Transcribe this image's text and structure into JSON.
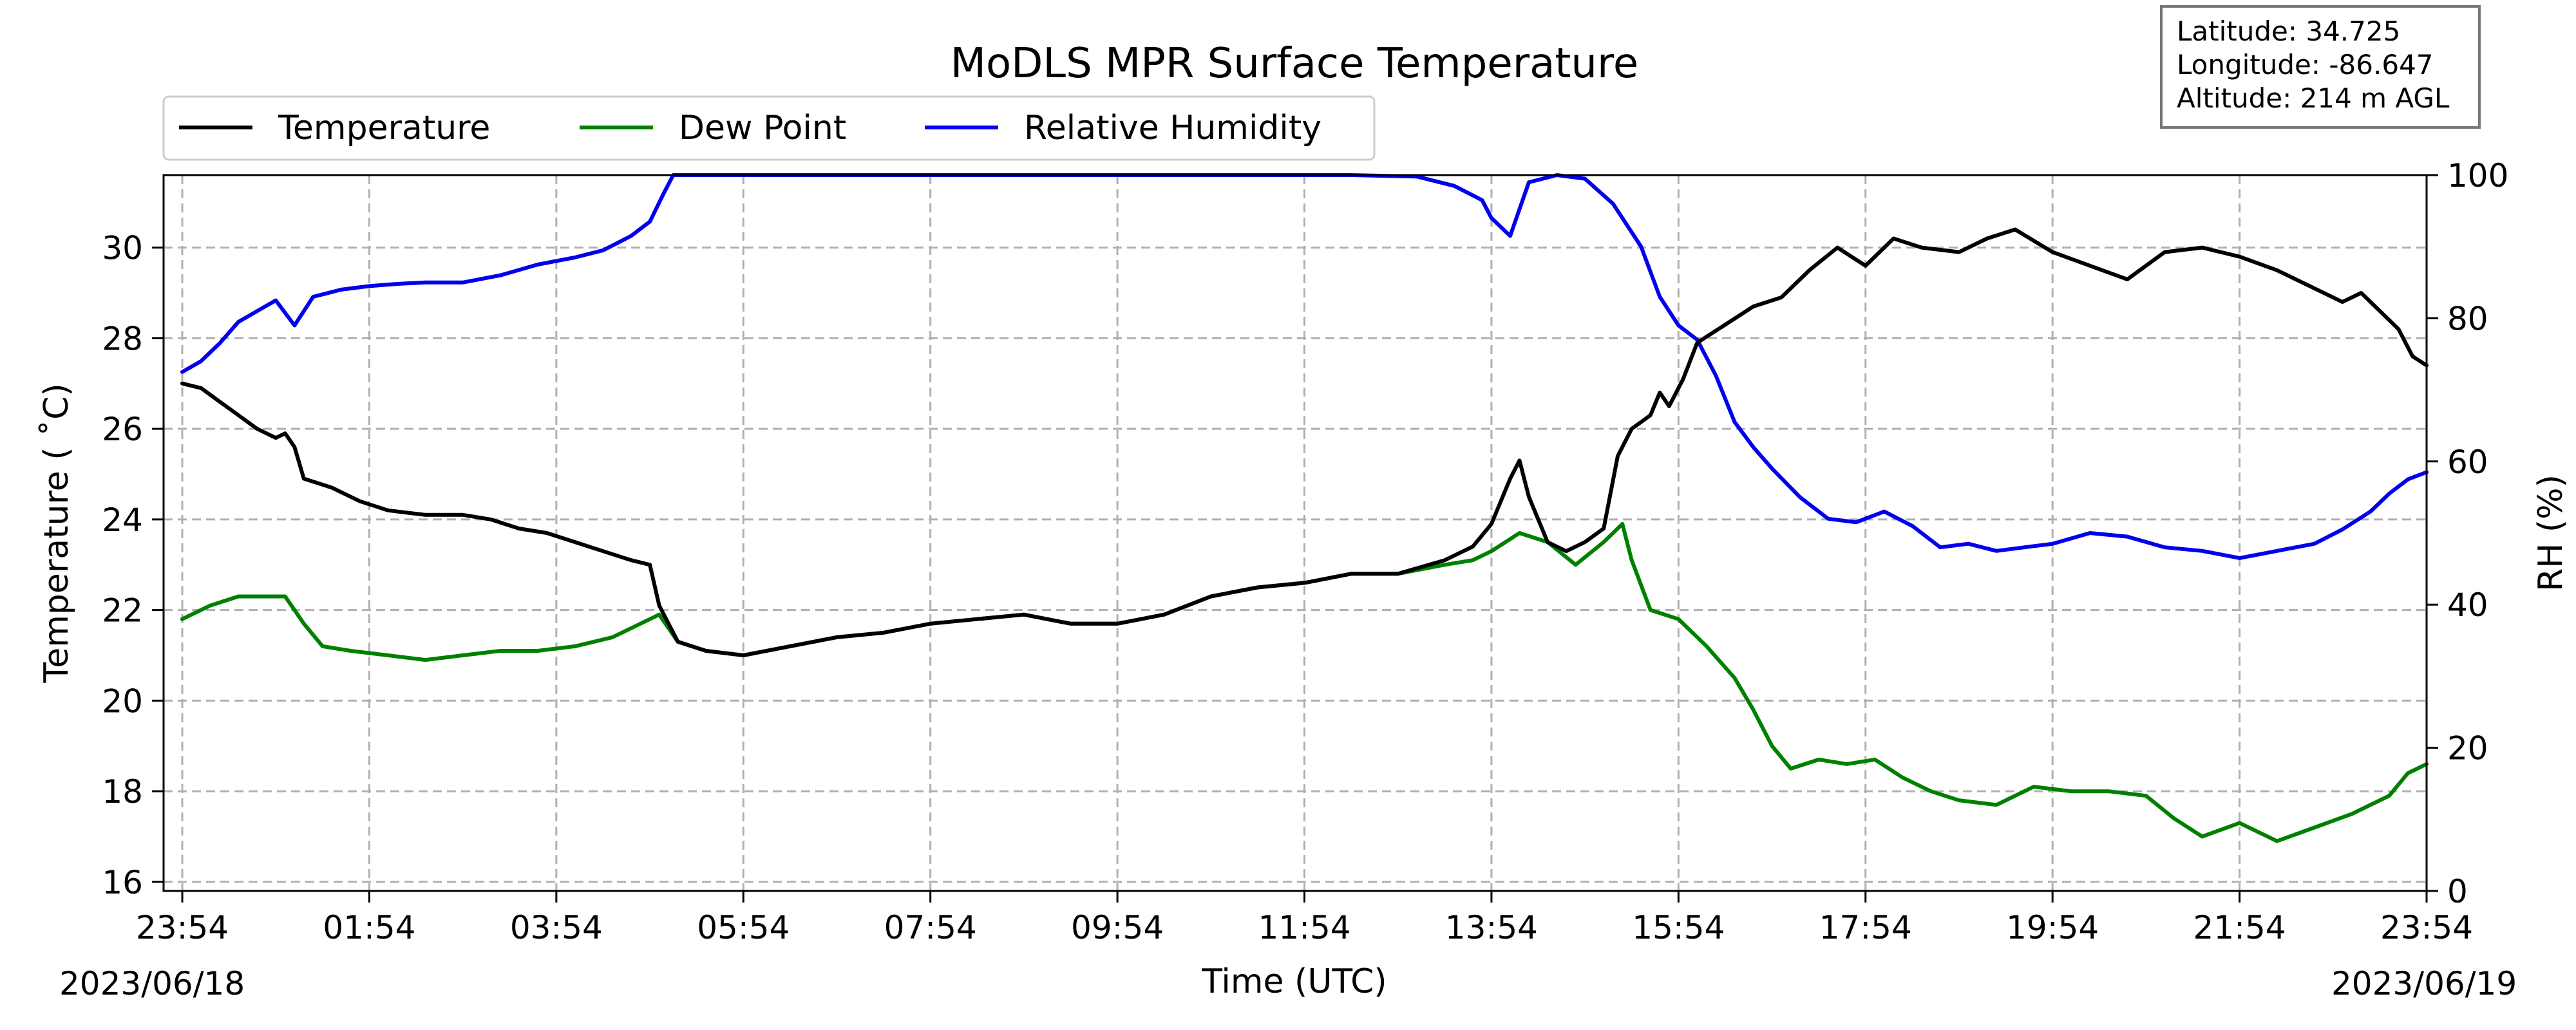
{
  "chart_data": {
    "type": "line",
    "title": "MoDLS MPR Surface Temperature",
    "xlabel": "Time (UTC)",
    "ylabel_left": "Temperature ( $^\\circ$C)",
    "ylabel_left_display": "Temperature ( ˚C)",
    "ylabel_right": "RH (%)",
    "x_ticks": [
      "23:54",
      "01:54",
      "03:54",
      "05:54",
      "07:54",
      "09:54",
      "11:54",
      "13:54",
      "15:54",
      "17:54",
      "19:54",
      "21:54",
      "23:54"
    ],
    "x_tick_hours": [
      0,
      2,
      4,
      6,
      8,
      10,
      12,
      14,
      16,
      18,
      20,
      22,
      24
    ],
    "x_range_hours_since_2354": [
      -0.2,
      24
    ],
    "date_start": "2023/06/18",
    "date_end": "2023/06/19",
    "ylim_left": [
      15.8,
      31.6
    ],
    "yticks_left": [
      16,
      18,
      20,
      22,
      24,
      26,
      28,
      30
    ],
    "ylim_right": [
      0,
      100
    ],
    "yticks_right": [
      0,
      20,
      40,
      60,
      80,
      100
    ],
    "grid": true,
    "legend_placement": "top-left",
    "info_box": {
      "latitude": "Latitude: 34.725",
      "longitude": "Longitude: -86.647",
      "altitude": "Altitude: 214 m AGL"
    },
    "series": [
      {
        "name": "Temperature",
        "axis": "left",
        "color": "#000000",
        "points": [
          [
            0,
            27.0
          ],
          [
            0.2,
            26.9
          ],
          [
            0.4,
            26.6
          ],
          [
            0.6,
            26.3
          ],
          [
            0.8,
            26.0
          ],
          [
            1.0,
            25.8
          ],
          [
            1.1,
            25.9
          ],
          [
            1.2,
            25.6
          ],
          [
            1.3,
            24.9
          ],
          [
            1.6,
            24.7
          ],
          [
            1.9,
            24.4
          ],
          [
            2.2,
            24.2
          ],
          [
            2.6,
            24.1
          ],
          [
            3.0,
            24.1
          ],
          [
            3.3,
            24.0
          ],
          [
            3.6,
            23.8
          ],
          [
            3.9,
            23.7
          ],
          [
            4.2,
            23.5
          ],
          [
            4.5,
            23.3
          ],
          [
            4.8,
            23.1
          ],
          [
            5.0,
            23.0
          ],
          [
            5.1,
            22.1
          ],
          [
            5.3,
            21.3
          ],
          [
            5.6,
            21.1
          ],
          [
            6.0,
            21.0
          ],
          [
            6.5,
            21.2
          ],
          [
            7.0,
            21.4
          ],
          [
            7.5,
            21.5
          ],
          [
            8.0,
            21.7
          ],
          [
            8.5,
            21.8
          ],
          [
            9.0,
            21.9
          ],
          [
            9.5,
            21.7
          ],
          [
            10.0,
            21.7
          ],
          [
            10.5,
            21.9
          ],
          [
            11.0,
            22.3
          ],
          [
            11.5,
            22.5
          ],
          [
            12.0,
            22.6
          ],
          [
            12.5,
            22.8
          ],
          [
            13.0,
            22.8
          ],
          [
            13.5,
            23.1
          ],
          [
            13.8,
            23.4
          ],
          [
            14.0,
            23.9
          ],
          [
            14.2,
            24.9
          ],
          [
            14.3,
            25.3
          ],
          [
            14.4,
            24.5
          ],
          [
            14.6,
            23.5
          ],
          [
            14.8,
            23.3
          ],
          [
            15.0,
            23.5
          ],
          [
            15.2,
            23.8
          ],
          [
            15.35,
            25.4
          ],
          [
            15.5,
            26.0
          ],
          [
            15.7,
            26.3
          ],
          [
            15.8,
            26.8
          ],
          [
            15.9,
            26.5
          ],
          [
            16.05,
            27.1
          ],
          [
            16.2,
            27.9
          ],
          [
            16.5,
            28.3
          ],
          [
            16.8,
            28.7
          ],
          [
            17.1,
            28.9
          ],
          [
            17.4,
            29.5
          ],
          [
            17.7,
            30.0
          ],
          [
            18.0,
            29.6
          ],
          [
            18.3,
            30.2
          ],
          [
            18.6,
            30.0
          ],
          [
            19.0,
            29.9
          ],
          [
            19.3,
            30.2
          ],
          [
            19.6,
            30.4
          ],
          [
            20.0,
            29.9
          ],
          [
            20.4,
            29.6
          ],
          [
            20.8,
            29.3
          ],
          [
            21.2,
            29.9
          ],
          [
            21.6,
            30.0
          ],
          [
            22.0,
            29.8
          ],
          [
            22.4,
            29.5
          ],
          [
            22.8,
            29.1
          ],
          [
            23.1,
            28.8
          ],
          [
            23.3,
            29.0
          ],
          [
            23.5,
            28.6
          ],
          [
            23.7,
            28.2
          ],
          [
            23.85,
            27.6
          ],
          [
            24.0,
            27.4
          ]
        ]
      },
      {
        "name": "Dew Point",
        "axis": "left",
        "color": "#008000",
        "points": [
          [
            0,
            21.8
          ],
          [
            0.3,
            22.1
          ],
          [
            0.6,
            22.3
          ],
          [
            0.9,
            22.3
          ],
          [
            1.1,
            22.3
          ],
          [
            1.3,
            21.7
          ],
          [
            1.5,
            21.2
          ],
          [
            1.8,
            21.1
          ],
          [
            2.2,
            21.0
          ],
          [
            2.6,
            20.9
          ],
          [
            3.0,
            21.0
          ],
          [
            3.4,
            21.1
          ],
          [
            3.8,
            21.1
          ],
          [
            4.2,
            21.2
          ],
          [
            4.6,
            21.4
          ],
          [
            4.9,
            21.7
          ],
          [
            5.1,
            21.9
          ],
          [
            5.3,
            21.3
          ],
          [
            5.6,
            21.1
          ],
          [
            6.0,
            21.0
          ],
          [
            6.5,
            21.2
          ],
          [
            7.0,
            21.4
          ],
          [
            7.5,
            21.5
          ],
          [
            8.0,
            21.7
          ],
          [
            8.5,
            21.8
          ],
          [
            9.0,
            21.9
          ],
          [
            9.5,
            21.7
          ],
          [
            10.0,
            21.7
          ],
          [
            10.5,
            21.9
          ],
          [
            11.0,
            22.3
          ],
          [
            11.5,
            22.5
          ],
          [
            12.0,
            22.6
          ],
          [
            12.5,
            22.8
          ],
          [
            13.0,
            22.8
          ],
          [
            13.5,
            23.0
          ],
          [
            13.8,
            23.1
          ],
          [
            14.0,
            23.3
          ],
          [
            14.3,
            23.7
          ],
          [
            14.6,
            23.5
          ],
          [
            14.9,
            23.0
          ],
          [
            15.2,
            23.5
          ],
          [
            15.4,
            23.9
          ],
          [
            15.5,
            23.1
          ],
          [
            15.7,
            22.0
          ],
          [
            16.0,
            21.8
          ],
          [
            16.3,
            21.2
          ],
          [
            16.6,
            20.5
          ],
          [
            16.8,
            19.8
          ],
          [
            17.0,
            19.0
          ],
          [
            17.2,
            18.5
          ],
          [
            17.5,
            18.7
          ],
          [
            17.8,
            18.6
          ],
          [
            18.1,
            18.7
          ],
          [
            18.4,
            18.3
          ],
          [
            18.7,
            18.0
          ],
          [
            19.0,
            17.8
          ],
          [
            19.4,
            17.7
          ],
          [
            19.8,
            18.1
          ],
          [
            20.2,
            18.0
          ],
          [
            20.6,
            18.0
          ],
          [
            21.0,
            17.9
          ],
          [
            21.3,
            17.4
          ],
          [
            21.6,
            17.0
          ],
          [
            22.0,
            17.3
          ],
          [
            22.4,
            16.9
          ],
          [
            22.8,
            17.2
          ],
          [
            23.2,
            17.5
          ],
          [
            23.6,
            17.9
          ],
          [
            23.8,
            18.4
          ],
          [
            24.0,
            18.6
          ]
        ]
      },
      {
        "name": "Relative Humidity",
        "axis": "right",
        "color": "#0000ee",
        "points": [
          [
            0,
            72.5
          ],
          [
            0.2,
            74.0
          ],
          [
            0.4,
            76.5
          ],
          [
            0.6,
            79.5
          ],
          [
            0.8,
            81.0
          ],
          [
            1.0,
            82.5
          ],
          [
            1.2,
            79.0
          ],
          [
            1.4,
            83.0
          ],
          [
            1.7,
            84.0
          ],
          [
            2.0,
            84.5
          ],
          [
            2.3,
            84.8
          ],
          [
            2.6,
            85.0
          ],
          [
            3.0,
            85.0
          ],
          [
            3.4,
            86.0
          ],
          [
            3.8,
            87.5
          ],
          [
            4.2,
            88.5
          ],
          [
            4.5,
            89.5
          ],
          [
            4.8,
            91.5
          ],
          [
            5.0,
            93.5
          ],
          [
            5.15,
            97.5
          ],
          [
            5.25,
            100
          ],
          [
            7.0,
            100
          ],
          [
            9.0,
            100
          ],
          [
            11.0,
            100
          ],
          [
            12.5,
            100
          ],
          [
            13.2,
            99.8
          ],
          [
            13.6,
            98.5
          ],
          [
            13.9,
            96.5
          ],
          [
            14.0,
            94.0
          ],
          [
            14.2,
            91.5
          ],
          [
            14.4,
            99.0
          ],
          [
            14.7,
            100
          ],
          [
            15.0,
            99.5
          ],
          [
            15.3,
            96.0
          ],
          [
            15.6,
            90.0
          ],
          [
            15.8,
            83.0
          ],
          [
            16.0,
            79.0
          ],
          [
            16.2,
            77.0
          ],
          [
            16.4,
            72.0
          ],
          [
            16.6,
            65.5
          ],
          [
            16.8,
            62.0
          ],
          [
            17.0,
            59.0
          ],
          [
            17.3,
            55.0
          ],
          [
            17.6,
            52.0
          ],
          [
            17.9,
            51.5
          ],
          [
            18.2,
            53.0
          ],
          [
            18.5,
            51.0
          ],
          [
            18.8,
            48.0
          ],
          [
            19.1,
            48.5
          ],
          [
            19.4,
            47.5
          ],
          [
            19.7,
            48.0
          ],
          [
            20.0,
            48.5
          ],
          [
            20.4,
            50.0
          ],
          [
            20.8,
            49.5
          ],
          [
            21.2,
            48.0
          ],
          [
            21.6,
            47.5
          ],
          [
            22.0,
            46.5
          ],
          [
            22.4,
            47.5
          ],
          [
            22.8,
            48.5
          ],
          [
            23.1,
            50.5
          ],
          [
            23.4,
            53.0
          ],
          [
            23.6,
            55.5
          ],
          [
            23.8,
            57.5
          ],
          [
            24.0,
            58.5
          ]
        ]
      }
    ]
  }
}
